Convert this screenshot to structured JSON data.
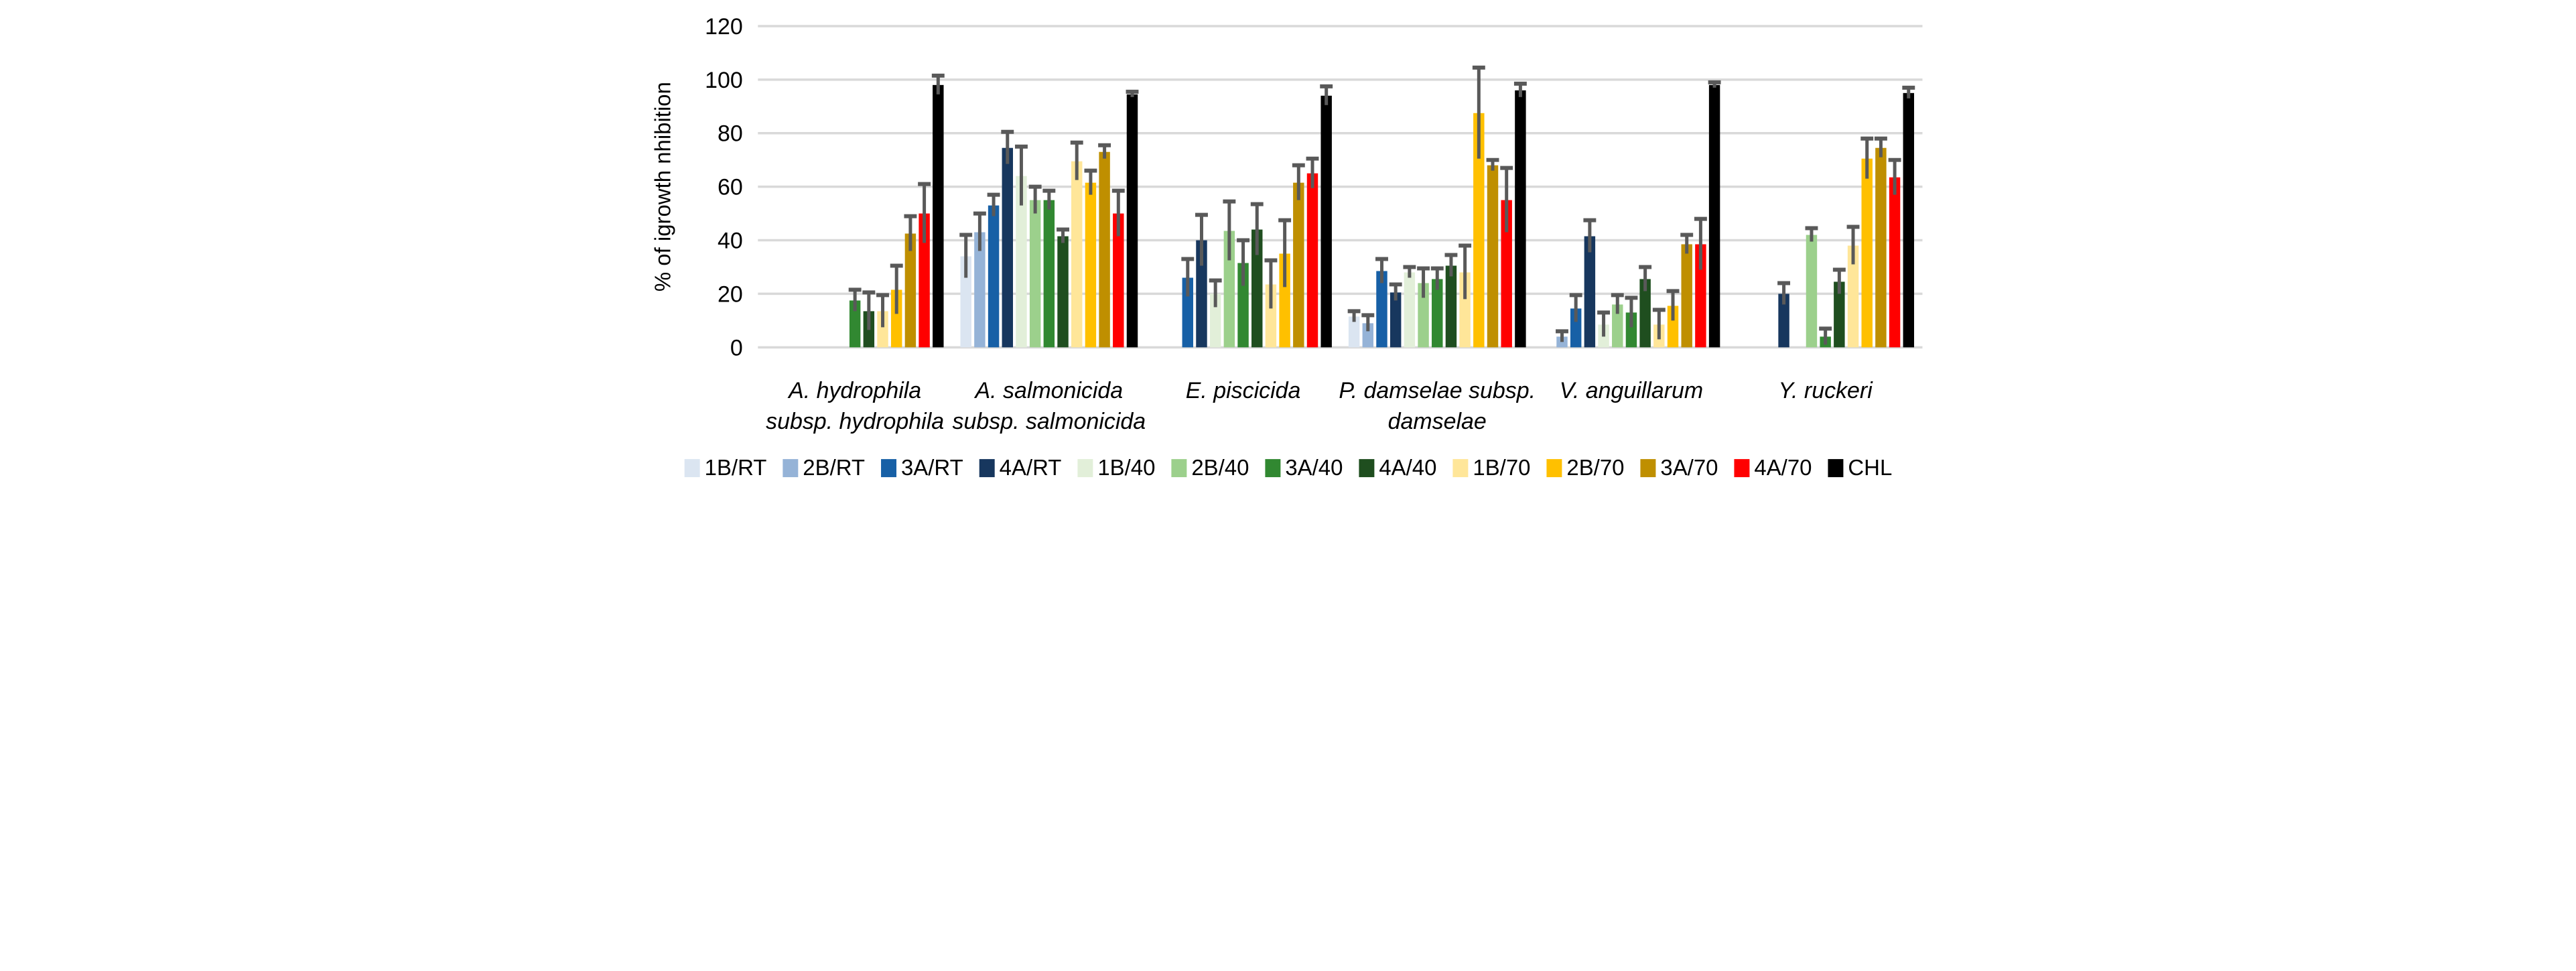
{
  "chart_data": {
    "type": "bar",
    "title": "",
    "xlabel": "",
    "ylabel": "% of igrowth nhibition",
    "ylim": [
      0,
      120
    ],
    "yticks": [
      0,
      20,
      40,
      60,
      80,
      100,
      120
    ],
    "grid": true,
    "grid_color": "#D9D9D9",
    "error_bar_color": "#595959",
    "legend_position": "bottom",
    "categories": [
      "A. hydrophila subsp. hydrophila",
      "A. salmonicida subsp. salmonicida",
      "E. piscicida",
      "P. damselae subsp. damselae",
      "V. anguillarum",
      "Y. ruckeri"
    ],
    "category_label_lines": [
      [
        "A. hydrophila",
        "subsp. hydrophila"
      ],
      [
        "A. salmonicida",
        "subsp. salmonicida"
      ],
      [
        "E. piscicida"
      ],
      [
        "P. damselae subsp.",
        "damselae"
      ],
      [
        "V. anguillarum"
      ],
      [
        "Y. ruckeri"
      ]
    ],
    "series": [
      {
        "name": "1B/RT",
        "color": "#DBE5F1",
        "values": [
          null,
          34,
          null,
          11.5,
          null,
          null
        ],
        "errors": [
          null,
          8,
          null,
          2,
          null,
          null
        ]
      },
      {
        "name": "2B/RT",
        "color": "#95B3D7",
        "values": [
          null,
          43,
          null,
          9,
          4,
          null
        ],
        "errors": [
          null,
          7,
          null,
          3,
          2,
          null
        ]
      },
      {
        "name": "3A/RT",
        "color": "#1760A6",
        "values": [
          null,
          53,
          26,
          28.5,
          14.5,
          null
        ],
        "errors": [
          null,
          4,
          7,
          4.5,
          5,
          null
        ]
      },
      {
        "name": "4A/RT",
        "color": "#17375E",
        "values": [
          null,
          74.5,
          40,
          20.5,
          41.5,
          20
        ],
        "errors": [
          null,
          6,
          9.5,
          3,
          6,
          4
        ]
      },
      {
        "name": "1B/40",
        "color": "#E2EFD9",
        "values": [
          null,
          64,
          20,
          28,
          8.5,
          null
        ],
        "errors": [
          null,
          11,
          5,
          2,
          4.5,
          null
        ]
      },
      {
        "name": "2B/40",
        "color": "#9CD08C",
        "values": [
          null,
          55,
          43.5,
          24,
          16,
          42
        ],
        "errors": [
          null,
          5,
          11,
          5.5,
          3.5,
          2.5
        ]
      },
      {
        "name": "3A/40",
        "color": "#318831",
        "values": [
          17.5,
          55,
          31.5,
          25.5,
          13,
          4
        ],
        "errors": [
          4,
          3.5,
          8.5,
          4,
          5.5,
          3
        ]
      },
      {
        "name": "4A/40",
        "color": "#1F4E1F",
        "values": [
          13.5,
          41.5,
          44,
          30.5,
          25.5,
          24.5
        ],
        "errors": [
          7,
          2.5,
          9.5,
          4,
          4.5,
          4.5
        ]
      },
      {
        "name": "1B/70",
        "color": "#FFE699",
        "values": [
          13.5,
          69.5,
          23.5,
          28,
          8.5,
          38
        ],
        "errors": [
          6,
          7,
          9,
          10,
          5.5,
          7
        ]
      },
      {
        "name": "2B/70",
        "color": "#FFC000",
        "values": [
          21.5,
          61.5,
          35,
          87.5,
          15.5,
          70.5
        ],
        "errors": [
          9,
          4.5,
          12.5,
          17,
          5.5,
          7.5
        ]
      },
      {
        "name": "3A/70",
        "color": "#BF8F00",
        "values": [
          42.5,
          73,
          61.5,
          68,
          38.5,
          74.5
        ],
        "errors": [
          6.5,
          2.5,
          6.5,
          2,
          3.5,
          3.5
        ]
      },
      {
        "name": "4A/70",
        "color": "#FF0000",
        "values": [
          50,
          50,
          65,
          55,
          38.5,
          63.5
        ],
        "errors": [
          11,
          8.5,
          5.5,
          12,
          9.5,
          6.5
        ]
      },
      {
        "name": "CHL",
        "color": "#000000",
        "values": [
          98,
          94.5,
          94,
          96,
          98,
          95
        ],
        "errors": [
          3.5,
          1,
          3.5,
          2.5,
          1,
          2
        ]
      }
    ]
  }
}
